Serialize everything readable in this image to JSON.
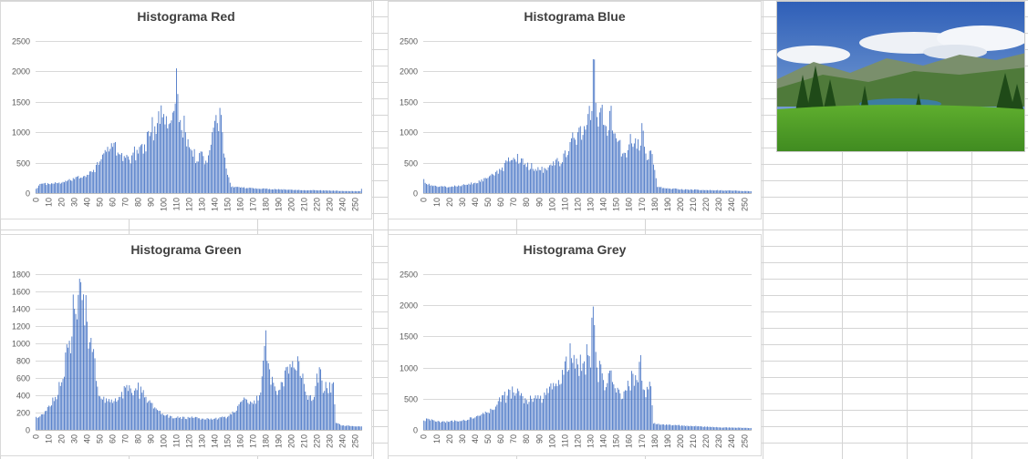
{
  "sheet": {
    "gridline_color": "#d4d4d4",
    "bar_color": "#4472c4"
  },
  "photo": {
    "icon": "landscape-photo",
    "sky": "#3f67b5",
    "grass": "#4e9a2a"
  },
  "chart_data": [
    {
      "type": "bar",
      "title": "Histograma Red",
      "ylim": [
        0,
        2500
      ],
      "yticks": [
        0,
        500,
        1000,
        1500,
        2000,
        2500
      ],
      "xticks": [
        0,
        10,
        20,
        30,
        40,
        50,
        60,
        70,
        80,
        90,
        100,
        110,
        120,
        130,
        140,
        150,
        160,
        170,
        180,
        190,
        200,
        210,
        220,
        230,
        240,
        250
      ],
      "grid": true,
      "anchors": [
        [
          0,
          70
        ],
        [
          3,
          150
        ],
        [
          10,
          150
        ],
        [
          20,
          170
        ],
        [
          30,
          230
        ],
        [
          40,
          300
        ],
        [
          50,
          520
        ],
        [
          55,
          680
        ],
        [
          60,
          760
        ],
        [
          65,
          640
        ],
        [
          70,
          580
        ],
        [
          75,
          620
        ],
        [
          80,
          650
        ],
        [
          85,
          800
        ],
        [
          90,
          1000
        ],
        [
          95,
          1150
        ],
        [
          100,
          1300
        ],
        [
          105,
          1150
        ],
        [
          108,
          1350
        ],
        [
          110,
          2050
        ],
        [
          113,
          1200
        ],
        [
          117,
          1000
        ],
        [
          122,
          700
        ],
        [
          126,
          520
        ],
        [
          130,
          680
        ],
        [
          134,
          500
        ],
        [
          138,
          1000
        ],
        [
          142,
          1150
        ],
        [
          144,
          1400
        ],
        [
          147,
          650
        ],
        [
          150,
          300
        ],
        [
          153,
          100
        ],
        [
          160,
          90
        ],
        [
          180,
          70
        ],
        [
          200,
          55
        ],
        [
          220,
          45
        ],
        [
          240,
          35
        ],
        [
          254,
          30
        ],
        [
          255,
          70
        ]
      ]
    },
    {
      "type": "bar",
      "title": "Histograma Blue",
      "ylim": [
        0,
        2500
      ],
      "yticks": [
        0,
        500,
        1000,
        1500,
        2000,
        2500
      ],
      "xticks": [
        0,
        10,
        20,
        30,
        40,
        50,
        60,
        70,
        80,
        90,
        100,
        110,
        120,
        130,
        140,
        150,
        160,
        170,
        180,
        190,
        200,
        210,
        220,
        230,
        240,
        250
      ],
      "grid": true,
      "anchors": [
        [
          0,
          230
        ],
        [
          2,
          150
        ],
        [
          10,
          110
        ],
        [
          20,
          100
        ],
        [
          30,
          130
        ],
        [
          40,
          170
        ],
        [
          50,
          250
        ],
        [
          60,
          380
        ],
        [
          65,
          520
        ],
        [
          70,
          580
        ],
        [
          75,
          500
        ],
        [
          80,
          430
        ],
        [
          90,
          380
        ],
        [
          100,
          450
        ],
        [
          105,
          520
        ],
        [
          110,
          700
        ],
        [
          115,
          900
        ],
        [
          120,
          1000
        ],
        [
          125,
          1100
        ],
        [
          128,
          1300
        ],
        [
          130,
          1200
        ],
        [
          132,
          2200
        ],
        [
          135,
          1250
        ],
        [
          138,
          1400
        ],
        [
          142,
          1100
        ],
        [
          145,
          1350
        ],
        [
          150,
          900
        ],
        [
          155,
          650
        ],
        [
          160,
          800
        ],
        [
          165,
          900
        ],
        [
          168,
          700
        ],
        [
          170,
          1150
        ],
        [
          173,
          650
        ],
        [
          177,
          700
        ],
        [
          180,
          380
        ],
        [
          182,
          100
        ],
        [
          190,
          80
        ],
        [
          200,
          60
        ],
        [
          220,
          50
        ],
        [
          240,
          40
        ],
        [
          255,
          30
        ]
      ]
    },
    {
      "type": "bar",
      "title": "Histograma Green",
      "ylim": [
        0,
        1800
      ],
      "yticks": [
        0,
        200,
        400,
        600,
        800,
        1000,
        1200,
        1400,
        1600,
        1800
      ],
      "xticks": [
        0,
        10,
        20,
        30,
        40,
        50,
        60,
        70,
        80,
        90,
        100,
        110,
        120,
        130,
        140,
        150,
        160,
        170,
        180,
        190,
        200,
        210,
        220,
        230,
        240,
        250
      ],
      "grid": true,
      "anchors": [
        [
          0,
          150
        ],
        [
          5,
          180
        ],
        [
          10,
          280
        ],
        [
          15,
          380
        ],
        [
          20,
          550
        ],
        [
          25,
          950
        ],
        [
          30,
          1400
        ],
        [
          33,
          1560
        ],
        [
          36,
          1500
        ],
        [
          40,
          1250
        ],
        [
          44,
          900
        ],
        [
          48,
          500
        ],
        [
          52,
          350
        ],
        [
          58,
          320
        ],
        [
          65,
          380
        ],
        [
          72,
          450
        ],
        [
          78,
          480
        ],
        [
          83,
          430
        ],
        [
          88,
          330
        ],
        [
          95,
          230
        ],
        [
          100,
          170
        ],
        [
          110,
          140
        ],
        [
          120,
          140
        ],
        [
          130,
          130
        ],
        [
          140,
          130
        ],
        [
          150,
          150
        ],
        [
          155,
          200
        ],
        [
          160,
          320
        ],
        [
          165,
          350
        ],
        [
          170,
          300
        ],
        [
          175,
          400
        ],
        [
          178,
          800
        ],
        [
          180,
          1150
        ],
        [
          183,
          700
        ],
        [
          188,
          450
        ],
        [
          193,
          550
        ],
        [
          198,
          650
        ],
        [
          203,
          700
        ],
        [
          205,
          850
        ],
        [
          208,
          600
        ],
        [
          212,
          400
        ],
        [
          217,
          350
        ],
        [
          220,
          650
        ],
        [
          223,
          700
        ],
        [
          226,
          450
        ],
        [
          230,
          550
        ],
        [
          233,
          550
        ],
        [
          235,
          80
        ],
        [
          240,
          50
        ],
        [
          250,
          40
        ],
        [
          255,
          40
        ]
      ]
    },
    {
      "type": "bar",
      "title": "Histograma Grey",
      "ylim": [
        0,
        2500
      ],
      "yticks": [
        0,
        500,
        1000,
        1500,
        2000,
        2500
      ],
      "xticks": [
        0,
        10,
        20,
        30,
        40,
        50,
        60,
        70,
        80,
        90,
        100,
        110,
        120,
        130,
        140,
        150,
        160,
        170,
        180,
        190,
        200,
        210,
        220,
        230,
        240,
        250
      ],
      "grid": true,
      "anchors": [
        [
          0,
          150
        ],
        [
          3,
          180
        ],
        [
          10,
          130
        ],
        [
          20,
          130
        ],
        [
          30,
          150
        ],
        [
          40,
          200
        ],
        [
          50,
          280
        ],
        [
          60,
          450
        ],
        [
          65,
          550
        ],
        [
          70,
          600
        ],
        [
          75,
          550
        ],
        [
          80,
          480
        ],
        [
          85,
          450
        ],
        [
          90,
          500
        ],
        [
          95,
          560
        ],
        [
          100,
          650
        ],
        [
          105,
          800
        ],
        [
          110,
          1100
        ],
        [
          115,
          1150
        ],
        [
          120,
          1050
        ],
        [
          125,
          1100
        ],
        [
          128,
          1200
        ],
        [
          130,
          1000
        ],
        [
          132,
          1980
        ],
        [
          135,
          1000
        ],
        [
          140,
          800
        ],
        [
          143,
          750
        ],
        [
          145,
          950
        ],
        [
          150,
          600
        ],
        [
          155,
          500
        ],
        [
          160,
          700
        ],
        [
          163,
          900
        ],
        [
          166,
          800
        ],
        [
          169,
          1200
        ],
        [
          171,
          650
        ],
        [
          175,
          650
        ],
        [
          177,
          700
        ],
        [
          179,
          100
        ],
        [
          190,
          80
        ],
        [
          210,
          60
        ],
        [
          230,
          40
        ],
        [
          255,
          30
        ]
      ]
    }
  ]
}
